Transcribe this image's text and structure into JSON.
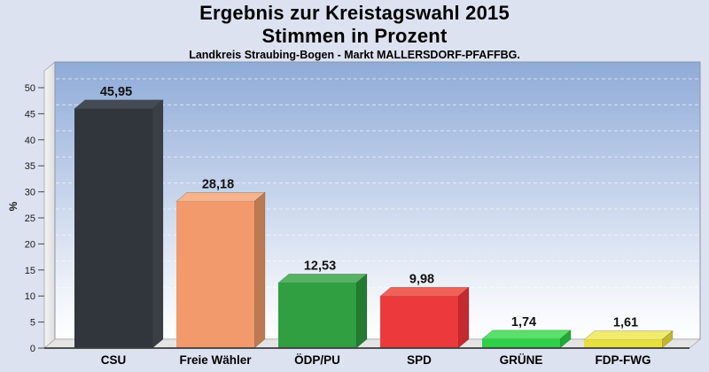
{
  "title": {
    "line1": "Ergebnis zur Kreistagswahl 2015",
    "line2": "Stimmen in Prozent",
    "subtitle": "Landkreis Straubing-Bogen - Markt MALLERSDORF-PFAFFBG."
  },
  "chart_data": {
    "type": "bar",
    "style": "3d-column",
    "title": "Ergebnis zur Kreistagswahl 2015 - Stimmen in Prozent",
    "subtitle": "Landkreis Straubing-Bogen - Markt MALLERSDORF-PFAFFBG.",
    "categories": [
      "CSU",
      "Freie Wähler",
      "ÖDP/PU",
      "SPD",
      "GRÜNE",
      "FDP-FWG"
    ],
    "values": [
      45.95,
      28.18,
      12.53,
      9.98,
      1.74,
      1.61
    ],
    "value_labels": [
      "45,95",
      "28,18",
      "12,53",
      "9,98",
      "1,74",
      "1,61"
    ],
    "xlabel": "",
    "ylabel": "%",
    "ylim": [
      0,
      50
    ],
    "ytick_interval": 5,
    "yticks": [
      "0",
      "5",
      "10",
      "15",
      "20",
      "25",
      "30",
      "35",
      "40",
      "45",
      "50"
    ],
    "grid": true,
    "grid_style": "dashed",
    "legend": false,
    "bar_colors": [
      {
        "name": "CSU",
        "face": "#31363d",
        "top": "#454b54",
        "side": "#3a3f46"
      },
      {
        "name": "Freie Wähler",
        "face": "#f29a6c",
        "top": "#f6b48c",
        "side": "#bd7a52"
      },
      {
        "name": "ÖDP/PU",
        "face": "#2f9f41",
        "top": "#55b363",
        "side": "#237a31"
      },
      {
        "name": "SPD",
        "face": "#ec3a3c",
        "top": "#f06158",
        "side": "#c52a2f"
      },
      {
        "name": "GRÜNE",
        "face": "#2ed048",
        "top": "#58e06a",
        "side": "#22a838"
      },
      {
        "name": "FDP-FWG",
        "face": "#e7df3d",
        "top": "#f0ea6e",
        "side": "#c1b62e"
      }
    ],
    "colors": {
      "page_background": "#dce2f0",
      "plot_gradient_top": "#8fabd8",
      "plot_gradient_bottom": "#ffffff",
      "wall_gray": "#ececec",
      "floor_gray": "#e4e4e4",
      "axis_line": "#3a3a3a",
      "gridline": "#ffffff",
      "label_text": "#000000"
    }
  }
}
